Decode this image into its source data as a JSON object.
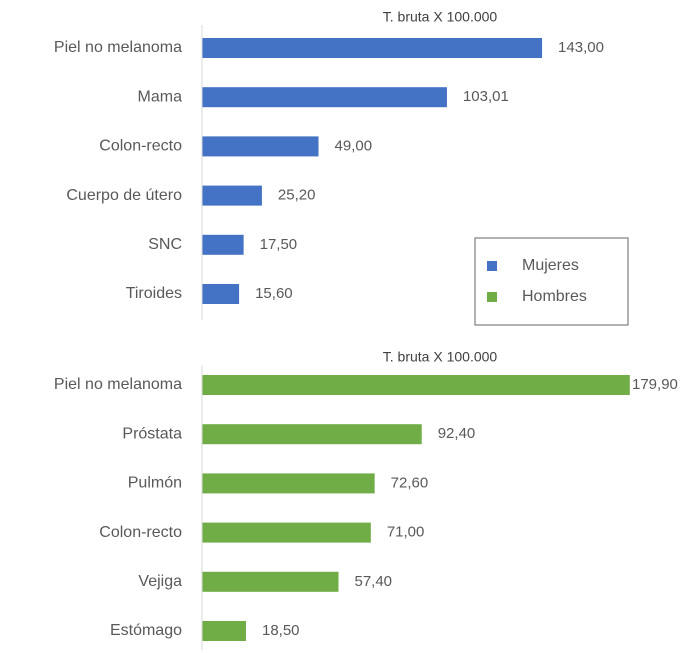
{
  "chart_data": [
    {
      "type": "bar",
      "orientation": "horizontal",
      "title": "T. bruta X 100.000",
      "categories": [
        "Piel no melanoma",
        "Mama",
        "Colon-recto",
        "Cuerpo de útero",
        "SNC",
        "Tiroides"
      ],
      "series": [
        {
          "name": "Mujeres",
          "color": "#4472c4",
          "values": [
            143.0,
            103.01,
            49.0,
            25.2,
            17.5,
            15.6
          ],
          "value_labels": [
            "143,00",
            "103,01",
            "49,00",
            "25,20",
            "17,50",
            "15,60"
          ]
        }
      ]
    },
    {
      "type": "bar",
      "orientation": "horizontal",
      "title": "T. bruta X 100.000",
      "categories": [
        "Piel no melanoma",
        "Próstata",
        "Pulmón",
        "Colon-recto",
        "Vejiga",
        "Estómago"
      ],
      "series": [
        {
          "name": "Hombres",
          "color": "#70ad47",
          "values": [
            179.9,
            92.4,
            72.6,
            71.0,
            57.4,
            18.5
          ],
          "value_labels": [
            "179,90",
            "92,40",
            "72,60",
            "71,00",
            "57,40",
            "18,50"
          ]
        }
      ]
    }
  ]
}
